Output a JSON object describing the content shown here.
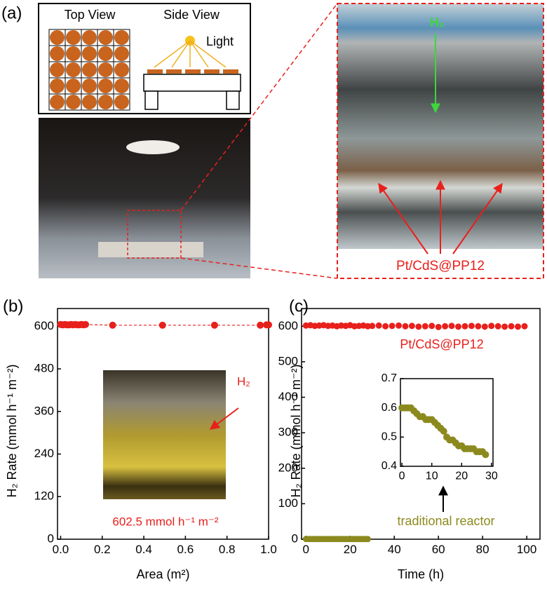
{
  "panel_a": {
    "label": "(a)",
    "top_view": "Top View",
    "side_view": "Side View",
    "light": "Light",
    "h2": "H₂",
    "catalyst": "Pt/CdS@PP12"
  },
  "chart_data": [
    {
      "type": "scatter",
      "panel": "(b)",
      "xlabel": "Area (m²)",
      "ylabel": "H₂ Rate (mmol h⁻¹ m⁻²)",
      "xlim": [
        -0.015,
        1.0
      ],
      "ylim": [
        0,
        650
      ],
      "xticks": [
        {
          "value": 0,
          "label": "0.0"
        },
        0.2,
        0.4,
        0.6,
        0.8,
        {
          "value": 1,
          "label": "1.0"
        }
      ],
      "yticks": [
        0,
        120,
        240,
        360,
        480,
        600
      ],
      "x": [
        0.0,
        0.01,
        0.02,
        0.03,
        0.04,
        0.05,
        0.06,
        0.07,
        0.08,
        0.09,
        0.1,
        0.11,
        0.12,
        0.25,
        0.49,
        0.74,
        0.96,
        0.99,
        1.0
      ],
      "values": [
        605,
        604,
        605,
        604,
        604,
        605,
        604,
        605,
        604,
        604,
        605,
        604,
        605,
        603,
        603,
        603,
        603,
        604,
        604
      ],
      "color": "#e8201c",
      "line": "dashed",
      "annotations": {
        "inset_h2": "H₂",
        "rate": "602.5 mmol h⁻¹ m⁻²"
      }
    },
    {
      "type": "scatter",
      "panel": "(c)",
      "xlabel": "Time (h)",
      "ylabel": "H₂ Rate (mmol h⁻¹ m⁻²)",
      "xlim": [
        -2,
        106
      ],
      "ylim": [
        0,
        650
      ],
      "xticks": [
        0,
        20,
        40,
        60,
        80,
        100
      ],
      "yticks": [
        0,
        100,
        200,
        300,
        400,
        500,
        600
      ],
      "series": [
        {
          "name": "Pt/CdS@PP12",
          "color": "#e8201c",
          "x": [
            0,
            2,
            4,
            6,
            8,
            10,
            12,
            14,
            16,
            18,
            20,
            22,
            24,
            26,
            28,
            30,
            33,
            36,
            39,
            42,
            45,
            48,
            51,
            54,
            57,
            60,
            63,
            66,
            69,
            72,
            75,
            78,
            81,
            84,
            87,
            90,
            93,
            96,
            99
          ],
          "values": [
            602,
            603,
            601,
            602,
            603,
            601,
            602,
            600,
            602,
            601,
            603,
            600,
            601,
            602,
            600,
            601,
            602,
            600,
            601,
            602,
            600,
            601,
            599,
            600,
            601,
            598,
            600,
            601,
            599,
            600,
            601,
            600,
            599,
            601,
            600,
            599,
            600,
            599,
            600
          ]
        },
        {
          "name": "traditional reactor",
          "color": "#8c8a1e",
          "x": [
            0,
            1,
            2,
            3,
            4,
            5,
            6,
            7,
            8,
            9,
            10,
            11,
            12,
            13,
            14,
            15,
            16,
            17,
            18,
            19,
            20,
            21,
            22,
            23,
            24,
            25,
            26,
            27,
            28
          ],
          "values": [
            0.6,
            0.6,
            0.6,
            0.6,
            0.59,
            0.58,
            0.57,
            0.57,
            0.56,
            0.56,
            0.56,
            0.55,
            0.54,
            0.53,
            0.52,
            0.5,
            0.49,
            0.49,
            0.48,
            0.47,
            0.47,
            0.46,
            0.46,
            0.46,
            0.46,
            0.45,
            0.45,
            0.45,
            0.44
          ]
        }
      ],
      "inset": {
        "xlim": [
          -0.5,
          30.5
        ],
        "ylim": [
          0.4,
          0.7
        ],
        "xticks": [
          0,
          10,
          20,
          30
        ],
        "yticks": [
          0.4,
          0.5,
          0.6,
          0.7
        ]
      }
    }
  ]
}
